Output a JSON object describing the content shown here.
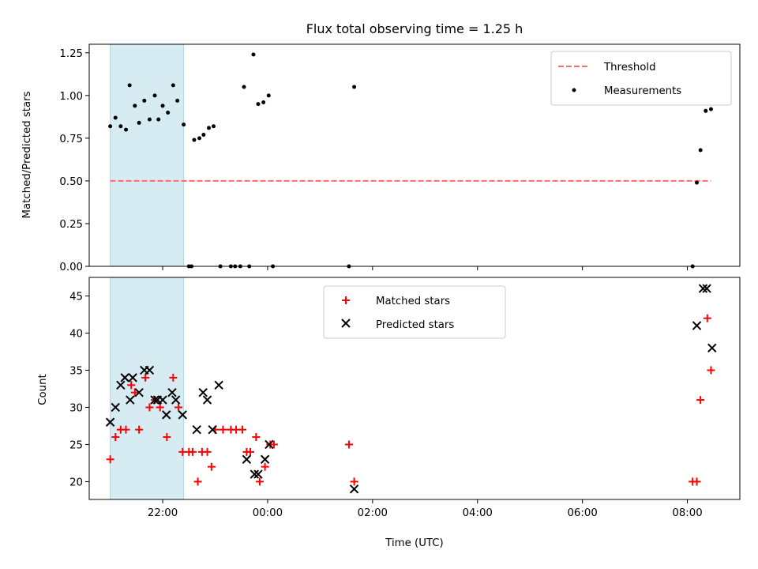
{
  "title": "Flux total observing time = 1.25 h",
  "chart_data": [
    {
      "type": "scatter",
      "ylabel": "Matched/Predicted stars",
      "xlabel": "",
      "xlim_hours": [
        20.6,
        33.0
      ],
      "ylim": [
        0,
        1.3
      ],
      "x_ticks": [
        22,
        24,
        26,
        28,
        30,
        32
      ],
      "y_ticks": [
        "0.00",
        "0.25",
        "0.50",
        "0.75",
        "1.00",
        "1.25"
      ],
      "shaded_interval_hours": [
        21.0,
        22.4
      ],
      "shaded_color": "#add8e6",
      "threshold": {
        "name": "Threshold",
        "value": 0.5,
        "x_range_hours": [
          21.0,
          32.45
        ],
        "color": "#ff6b6b"
      },
      "series": [
        {
          "name": "Measurements",
          "color": "#000000",
          "points": [
            [
              21.0,
              0.82
            ],
            [
              21.1,
              0.87
            ],
            [
              21.2,
              0.82
            ],
            [
              21.3,
              0.8
            ],
            [
              21.37,
              1.06
            ],
            [
              21.47,
              0.94
            ],
            [
              21.55,
              0.84
            ],
            [
              21.65,
              0.97
            ],
            [
              21.75,
              0.86
            ],
            [
              21.85,
              1.0
            ],
            [
              21.92,
              0.86
            ],
            [
              22.0,
              0.94
            ],
            [
              22.1,
              0.9
            ],
            [
              22.2,
              1.06
            ],
            [
              22.28,
              0.97
            ],
            [
              22.4,
              0.83
            ],
            [
              22.5,
              0.0
            ],
            [
              22.55,
              0.0
            ],
            [
              22.6,
              0.74
            ],
            [
              22.7,
              0.75
            ],
            [
              22.78,
              0.77
            ],
            [
              22.88,
              0.81
            ],
            [
              22.97,
              0.82
            ],
            [
              23.1,
              0.0
            ],
            [
              23.3,
              0.0
            ],
            [
              23.38,
              0.0
            ],
            [
              23.48,
              0.0
            ],
            [
              23.55,
              1.05
            ],
            [
              23.65,
              0.0
            ],
            [
              23.73,
              1.24
            ],
            [
              23.82,
              0.95
            ],
            [
              23.92,
              0.96
            ],
            [
              24.02,
              1.0
            ],
            [
              24.1,
              0.0
            ],
            [
              25.55,
              0.0
            ],
            [
              25.65,
              1.05
            ],
            [
              32.1,
              0.0
            ],
            [
              32.18,
              0.49
            ],
            [
              32.25,
              0.68
            ],
            [
              32.35,
              0.91
            ],
            [
              32.45,
              0.92
            ]
          ]
        }
      ]
    },
    {
      "type": "scatter",
      "ylabel": "Count",
      "xlabel": "Time (UTC)",
      "xlim_hours": [
        20.6,
        33.0
      ],
      "ylim": [
        17.6,
        47.5
      ],
      "x_ticks": [
        22,
        24,
        26,
        28,
        30,
        32
      ],
      "x_tick_labels": [
        "22:00",
        "00:00",
        "02:00",
        "04:00",
        "06:00",
        "08:00"
      ],
      "y_ticks": [
        "20",
        "25",
        "30",
        "35",
        "40",
        "45"
      ],
      "shaded_interval_hours": [
        21.0,
        22.4
      ],
      "shaded_color": "#add8e6",
      "series": [
        {
          "name": "Matched stars",
          "color": "#ff0000",
          "marker": "plus",
          "points": [
            [
              21.0,
              23
            ],
            [
              21.1,
              26
            ],
            [
              21.2,
              27
            ],
            [
              21.3,
              27
            ],
            [
              21.4,
              33
            ],
            [
              21.47,
              32
            ],
            [
              21.55,
              27
            ],
            [
              21.67,
              34
            ],
            [
              21.75,
              30
            ],
            [
              21.85,
              31
            ],
            [
              21.95,
              30
            ],
            [
              22.08,
              26
            ],
            [
              22.2,
              34
            ],
            [
              22.3,
              30
            ],
            [
              22.38,
              24
            ],
            [
              22.5,
              24
            ],
            [
              22.57,
              24
            ],
            [
              22.67,
              20
            ],
            [
              22.75,
              24
            ],
            [
              22.85,
              24
            ],
            [
              22.93,
              22
            ],
            [
              23.0,
              27
            ],
            [
              23.15,
              27
            ],
            [
              23.3,
              27
            ],
            [
              23.4,
              27
            ],
            [
              23.52,
              27
            ],
            [
              23.6,
              24
            ],
            [
              23.67,
              24
            ],
            [
              23.78,
              26
            ],
            [
              23.85,
              20
            ],
            [
              23.95,
              22
            ],
            [
              24.05,
              25
            ],
            [
              24.12,
              25
            ],
            [
              25.55,
              25
            ],
            [
              25.65,
              20
            ],
            [
              32.1,
              20
            ],
            [
              32.18,
              20
            ],
            [
              32.25,
              31
            ],
            [
              32.38,
              42
            ],
            [
              32.45,
              35
            ]
          ]
        },
        {
          "name": "Predicted stars",
          "color": "#000000",
          "marker": "x",
          "points": [
            [
              21.0,
              28
            ],
            [
              21.1,
              30
            ],
            [
              21.2,
              33
            ],
            [
              21.28,
              34
            ],
            [
              21.38,
              31
            ],
            [
              21.43,
              34
            ],
            [
              21.55,
              32
            ],
            [
              21.65,
              35
            ],
            [
              21.75,
              35
            ],
            [
              21.85,
              31
            ],
            [
              21.9,
              31
            ],
            [
              22.0,
              31
            ],
            [
              22.07,
              29
            ],
            [
              22.18,
              32
            ],
            [
              22.25,
              31
            ],
            [
              22.38,
              29
            ],
            [
              22.65,
              27
            ],
            [
              22.77,
              32
            ],
            [
              22.85,
              31
            ],
            [
              22.95,
              27
            ],
            [
              23.07,
              33
            ],
            [
              23.6,
              23
            ],
            [
              23.75,
              21
            ],
            [
              23.82,
              21
            ],
            [
              23.95,
              23
            ],
            [
              24.03,
              25
            ],
            [
              25.65,
              19
            ],
            [
              32.18,
              41
            ],
            [
              32.3,
              46
            ],
            [
              32.37,
              46
            ],
            [
              32.47,
              38
            ]
          ]
        }
      ]
    }
  ],
  "legend_top": [
    {
      "label": "Threshold"
    },
    {
      "label": "Measurements"
    }
  ],
  "legend_bottom": [
    {
      "label": "Matched stars"
    },
    {
      "label": "Predicted stars"
    }
  ]
}
